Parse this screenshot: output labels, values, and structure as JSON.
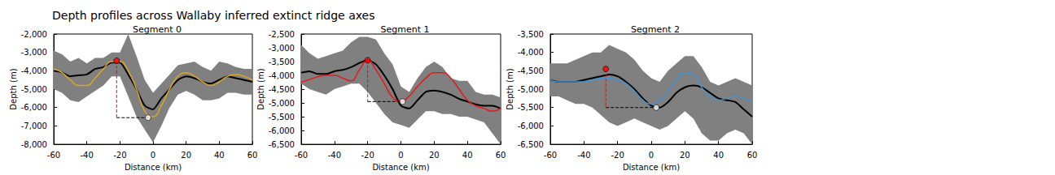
{
  "title": "Depth profiles across Wallaby inferred extinct ridge axes",
  "chart_data": [
    {
      "type": "line",
      "title": "Segment 0",
      "x_label": "Distance (km)",
      "y_label": "Depth (m)",
      "xlim": [
        -60,
        60
      ],
      "xticks": [
        -60,
        -40,
        -20,
        0,
        20,
        40,
        60
      ],
      "ylim": [
        -8000,
        -2000
      ],
      "yticks": [
        -8000,
        -7000,
        -6000,
        -5000,
        -4000,
        -3000,
        -2000
      ],
      "x": [
        -60,
        -55,
        -50,
        -45,
        -40,
        -35,
        -30,
        -25,
        -20,
        -15,
        -10,
        -5,
        0,
        5,
        10,
        15,
        20,
        25,
        30,
        35,
        40,
        45,
        50,
        55,
        60
      ],
      "band": {
        "color": "#808080",
        "upper": [
          -2900,
          -3100,
          -3500,
          -3300,
          -3600,
          -3300,
          -3300,
          -3000,
          -3000,
          -2000,
          -3200,
          -4500,
          -5200,
          -4700,
          -4200,
          -3700,
          -3600,
          -3500,
          -3800,
          -4000,
          -3500,
          -3600,
          -3800,
          -3900,
          -3900
        ],
        "lower": [
          -5000,
          -5200,
          -5600,
          -5700,
          -5400,
          -5100,
          -4800,
          -4300,
          -4300,
          -5400,
          -6500,
          -7200,
          -7900,
          -7000,
          -6000,
          -5300,
          -5100,
          -5300,
          -5600,
          -5600,
          -5500,
          -5200,
          -5200,
          -5300,
          -5300
        ]
      },
      "series": [
        {
          "color": "#000000",
          "values": [
            -4000,
            -4100,
            -4300,
            -4250,
            -4200,
            -3900,
            -3800,
            -3550,
            -3550,
            -4200,
            -5000,
            -5900,
            -6100,
            -5500,
            -5000,
            -4500,
            -4300,
            -4400,
            -4600,
            -4700,
            -4500,
            -4300,
            -4400,
            -4500,
            -4600
          ]
        },
        {
          "color": "#daa520",
          "values": [
            -3900,
            -4100,
            -4500,
            -4800,
            -4800,
            -4400,
            -3900,
            -3500,
            -3500,
            -4000,
            -5000,
            -6200,
            -6500,
            -5900,
            -5000,
            -4300,
            -4100,
            -4300,
            -4600,
            -4800,
            -4600,
            -4300,
            -4200,
            -4300,
            -4500
          ]
        }
      ],
      "points": [
        {
          "x": -22,
          "y": -3450,
          "color": "#ff0000"
        },
        {
          "x": -3,
          "y": -6550,
          "color": "#ffffff"
        }
      ]
    },
    {
      "type": "line",
      "title": "Segment 1",
      "x_label": "Distance (km)",
      "y_label": "Depth (m)",
      "xlim": [
        -60,
        60
      ],
      "xticks": [
        -60,
        -40,
        -20,
        0,
        20,
        40,
        60
      ],
      "ylim": [
        -6500,
        -2500
      ],
      "yticks": [
        -6500,
        -6000,
        -5500,
        -5000,
        -4500,
        -4000,
        -3500,
        -3000,
        -2500
      ],
      "x": [
        -60,
        -55,
        -50,
        -45,
        -40,
        -35,
        -30,
        -25,
        -20,
        -15,
        -10,
        -5,
        0,
        5,
        10,
        15,
        20,
        25,
        30,
        35,
        40,
        45,
        50,
        55,
        60
      ],
      "band": {
        "color": "#808080",
        "upper": [
          -2900,
          -3200,
          -3400,
          -3300,
          -3200,
          -3100,
          -2800,
          -2600,
          -2600,
          -2700,
          -3200,
          -3600,
          -4400,
          -4600,
          -4100,
          -3700,
          -3500,
          -3700,
          -4100,
          -4200,
          -4200,
          -4600,
          -4700,
          -4700,
          -4800
        ],
        "lower": [
          -4300,
          -4500,
          -4600,
          -4700,
          -4500,
          -4400,
          -4300,
          -4300,
          -4600,
          -5000,
          -5400,
          -5700,
          -5800,
          -5900,
          -5600,
          -5300,
          -5300,
          -5400,
          -5400,
          -5500,
          -5500,
          -5600,
          -5700,
          -6100,
          -6500
        ]
      },
      "series": [
        {
          "color": "#000000",
          "values": [
            -3900,
            -3850,
            -3950,
            -3950,
            -3850,
            -3800,
            -3700,
            -3550,
            -3450,
            -3600,
            -4000,
            -4500,
            -5100,
            -5200,
            -4900,
            -4600,
            -4550,
            -4600,
            -4700,
            -4850,
            -4950,
            -5050,
            -5100,
            -5100,
            -5200
          ]
        },
        {
          "color": "#e31a1c",
          "values": [
            -4250,
            -4150,
            -4050,
            -4000,
            -4000,
            -4100,
            -4200,
            -3800,
            -3450,
            -3800,
            -4300,
            -4800,
            -4950,
            -4750,
            -4400,
            -4100,
            -3900,
            -3900,
            -4100,
            -4500,
            -4900,
            -5100,
            -5200,
            -5300,
            -5200
          ]
        }
      ],
      "points": [
        {
          "x": -20,
          "y": -3450,
          "color": "#ff0000"
        },
        {
          "x": 1,
          "y": -4950,
          "color": "#ffffff"
        }
      ]
    },
    {
      "type": "line",
      "title": "Segment 2",
      "x_label": "Distance (km)",
      "y_label": "Depth (m)",
      "xlim": [
        -60,
        60
      ],
      "xticks": [
        -60,
        -40,
        -20,
        0,
        20,
        40,
        60
      ],
      "ylim": [
        -6500,
        -3500
      ],
      "yticks": [
        -6500,
        -6000,
        -5500,
        -5000,
        -4500,
        -4000,
        -3500
      ],
      "x": [
        -60,
        -55,
        -50,
        -45,
        -40,
        -35,
        -30,
        -25,
        -20,
        -15,
        -10,
        -5,
        0,
        5,
        10,
        15,
        20,
        25,
        30,
        35,
        40,
        45,
        50,
        55,
        60
      ],
      "band": {
        "color": "#808080",
        "upper": [
          -4300,
          -4300,
          -4300,
          -4200,
          -4100,
          -4000,
          -4000,
          -3800,
          -3900,
          -4000,
          -4200,
          -4500,
          -4700,
          -4800,
          -4500,
          -4300,
          -4100,
          -4100,
          -4400,
          -4800,
          -4900,
          -4800,
          -4700,
          -4800,
          -4900
        ],
        "lower": [
          -5200,
          -5200,
          -5300,
          -5400,
          -5400,
          -5500,
          -5700,
          -5900,
          -6000,
          -5900,
          -5800,
          -5900,
          -6000,
          -6100,
          -6000,
          -5800,
          -5600,
          -5800,
          -6200,
          -6400,
          -6400,
          -6200,
          -6100,
          -6200,
          -6500
        ]
      },
      "series": [
        {
          "color": "#000000",
          "values": [
            -4750,
            -4800,
            -4800,
            -4800,
            -4750,
            -4700,
            -4650,
            -4600,
            -4650,
            -4800,
            -5000,
            -5250,
            -5450,
            -5500,
            -5350,
            -5100,
            -4950,
            -4900,
            -4950,
            -5100,
            -5250,
            -5300,
            -5350,
            -5550,
            -5750
          ]
        },
        {
          "color": "#4393d3",
          "values": [
            -4750,
            -4800,
            -4800,
            -4800,
            -4800,
            -4750,
            -4700,
            -4700,
            -4750,
            -4850,
            -5050,
            -5300,
            -5400,
            -5300,
            -5050,
            -4750,
            -4550,
            -4600,
            -4950,
            -5200,
            -5300,
            -5250,
            -5200,
            -5250,
            -5350
          ]
        }
      ],
      "points": [
        {
          "x": -27,
          "y": -4450,
          "color": "#ff0000"
        },
        {
          "x": 3,
          "y": -5500,
          "color": "#ffffff"
        }
      ]
    }
  ]
}
